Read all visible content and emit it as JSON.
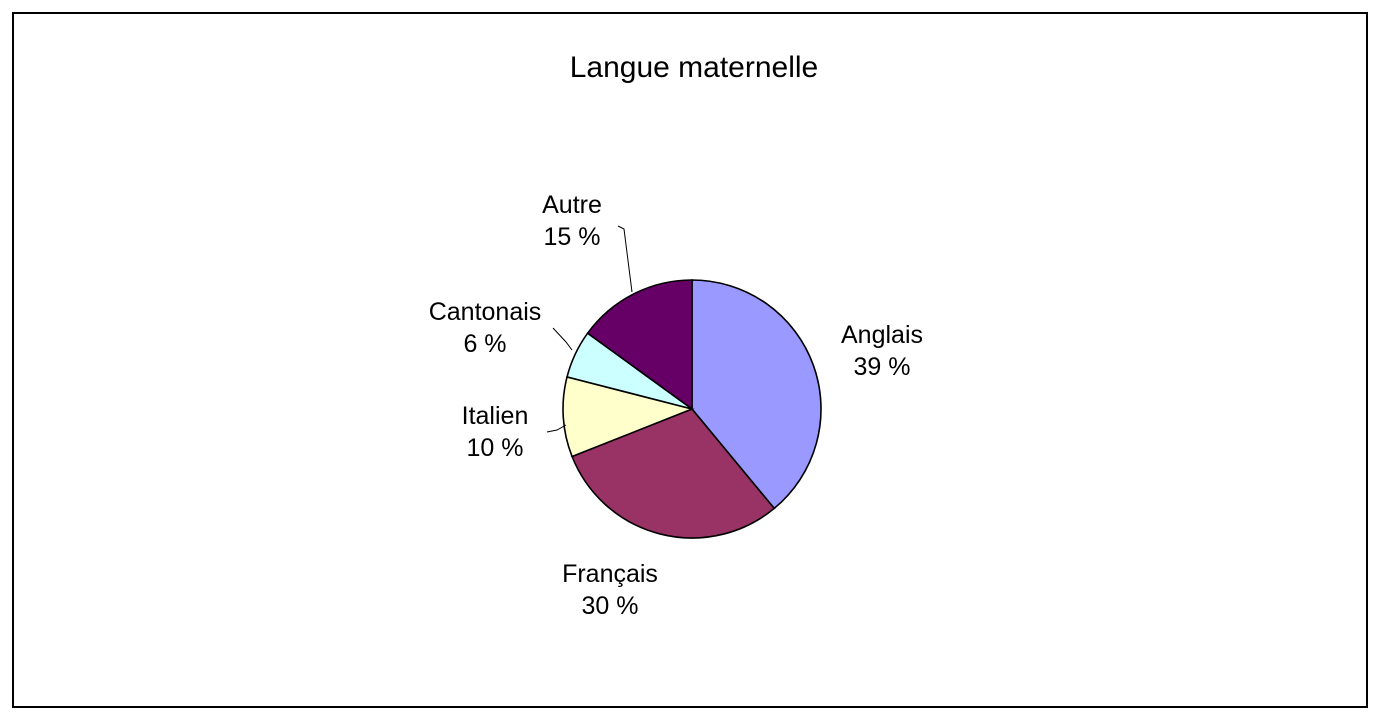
{
  "chart_data": {
    "type": "pie",
    "title": "Langue maternelle",
    "slices": [
      {
        "name": "Anglais",
        "value": 39,
        "label_pct": "39 %",
        "color": "#9999ff"
      },
      {
        "name": "Français",
        "value": 30,
        "label_pct": "30 %",
        "color": "#993366"
      },
      {
        "name": "Italien",
        "value": 10,
        "label_pct": "10 %",
        "color": "#ffffcc"
      },
      {
        "name": "Cantonais",
        "value": 6,
        "label_pct": "6 %",
        "color": "#ccffff"
      },
      {
        "name": "Autre",
        "value": 15,
        "label_pct": "15 %",
        "color": "#660066"
      }
    ],
    "start_angle": "12 o'clock",
    "direction": "clockwise"
  }
}
